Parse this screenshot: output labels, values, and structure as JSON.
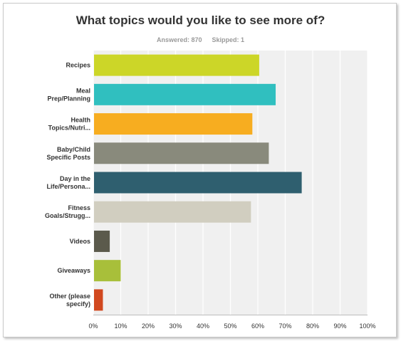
{
  "chart_data": {
    "type": "bar",
    "orientation": "horizontal",
    "title": "What topics would you like to see more of?",
    "answered_label": "Answered: 870",
    "skipped_label": "Skipped: 1",
    "categories": [
      [
        "Recipes"
      ],
      [
        "Meal",
        "Prep/Planning"
      ],
      [
        "Health",
        "Topics/Nutri..."
      ],
      [
        "Baby/Child",
        "Specific Posts"
      ],
      [
        "Day in the",
        "Life/Persona..."
      ],
      [
        "Fitness",
        "Goals/Strugg..."
      ],
      [
        "Videos"
      ],
      [
        "Giveaways"
      ],
      [
        "Other (please",
        "specify)"
      ]
    ],
    "values": [
      60.5,
      66.5,
      58,
      64,
      76,
      57.5,
      6,
      10,
      3.5
    ],
    "colors": [
      "#ccd628",
      "#30bfbf",
      "#f7ad20",
      "#898a7c",
      "#2f5f6f",
      "#d1ceC0",
      "#5b5a4c",
      "#a8bf3a",
      "#d1481f"
    ],
    "xlim": [
      0,
      100
    ],
    "ticks": [
      "0%",
      "10%",
      "20%",
      "30%",
      "40%",
      "50%",
      "60%",
      "70%",
      "80%",
      "90%",
      "100%"
    ],
    "grid": true,
    "plot_background": "#f0f0f0",
    "legend": "none"
  }
}
